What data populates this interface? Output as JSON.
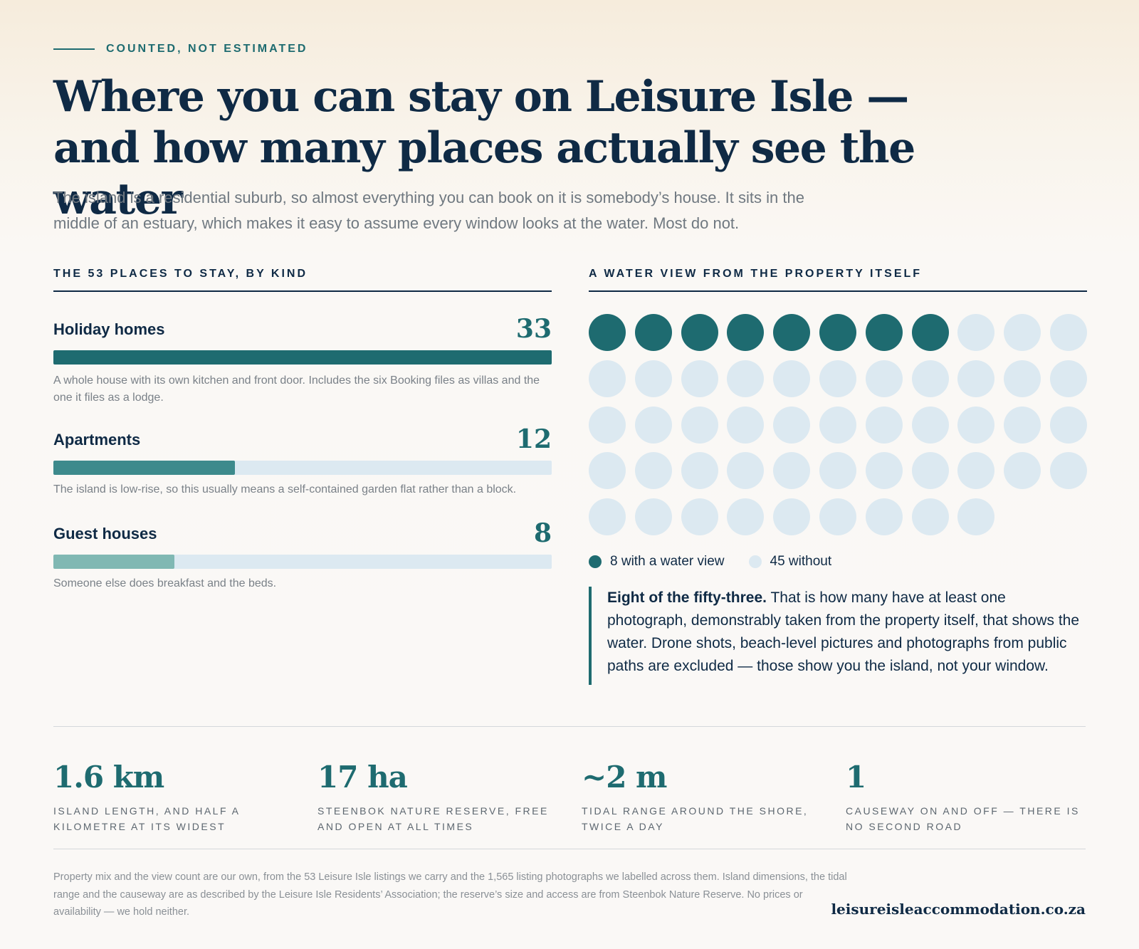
{
  "eyebrow": "COUNTED, NOT ESTIMATED",
  "headline": {
    "line1": "Where you can stay on Leisure Isle —",
    "line2": "and how many places actually see the water"
  },
  "intro": "The island is a residential suburb, so almost everything you can book on it is somebody’s house. It sits in the middle of an estuary, which makes it easy to assume every window looks at the water. Most do not.",
  "left_section_title": "THE 53 PLACES TO STAY, BY KIND",
  "right_section_title": "A WATER VIEW FROM THE PROPERTY ITSELF",
  "colors": {
    "accent": "#1e6b70",
    "navy": "#0f2a45",
    "track": "#dce9f1",
    "bar_holiday": "#1e6b70",
    "bar_apartments": "#3d8a8c",
    "bar_guest": "#80b8b3"
  },
  "chart_data": [
    {
      "type": "bar",
      "orientation": "horizontal",
      "title": "THE 53 PLACES TO STAY, BY KIND",
      "categories": [
        "Holiday homes",
        "Apartments",
        "Guest houses"
      ],
      "values": [
        33,
        12,
        8
      ],
      "xlim": [
        0,
        33
      ],
      "notes": [
        "A whole house with its own kitchen and front door. Includes the six Booking files as villas and the one it files as a lodge.",
        "The island is low-rise, so this usually means a self-contained garden flat rather than a block.",
        "Someone else does breakfast and the beds."
      ]
    },
    {
      "type": "waffle",
      "title": "A WATER VIEW FROM THE PROPERTY ITSELF",
      "columns": 11,
      "series": [
        {
          "name": "8 with a water view",
          "value": 8,
          "color": "#1e6b70"
        },
        {
          "name": "45 without",
          "value": 45,
          "color": "#dce9f1"
        }
      ]
    }
  ],
  "callout": {
    "lead": "Eight of the fifty-three.",
    "body": " That is how many have at least one photograph, demonstrably taken from the property itself, that shows the water. Drone shots, beach-level pictures and photographs from public paths are excluded — those show you the island, not your window."
  },
  "stats": [
    {
      "value": "1.6 km",
      "label": "ISLAND LENGTH, AND HALF A KILOMETRE AT ITS WIDEST"
    },
    {
      "value": "17 ha",
      "label": "STEENBOK NATURE RESERVE, FREE AND OPEN AT ALL TIMES"
    },
    {
      "value": "~2 m",
      "label": "TIDAL RANGE AROUND THE SHORE, TWICE A DAY"
    },
    {
      "value": "1",
      "label": "CAUSEWAY ON AND OFF — THERE IS NO SECOND ROAD"
    }
  ],
  "footnote": "Property mix and the view count are our own, from the 53 Leisure Isle listings we carry and the 1,565 listing photographs we labelled across them. Island dimensions, the tidal range and the causeway are as described by the Leisure Isle Residents’ Association; the reserve’s size and access are from Steenbok Nature Reserve. No prices or availability — we hold neither.",
  "domain": "leisureisleaccommodation.co.za"
}
